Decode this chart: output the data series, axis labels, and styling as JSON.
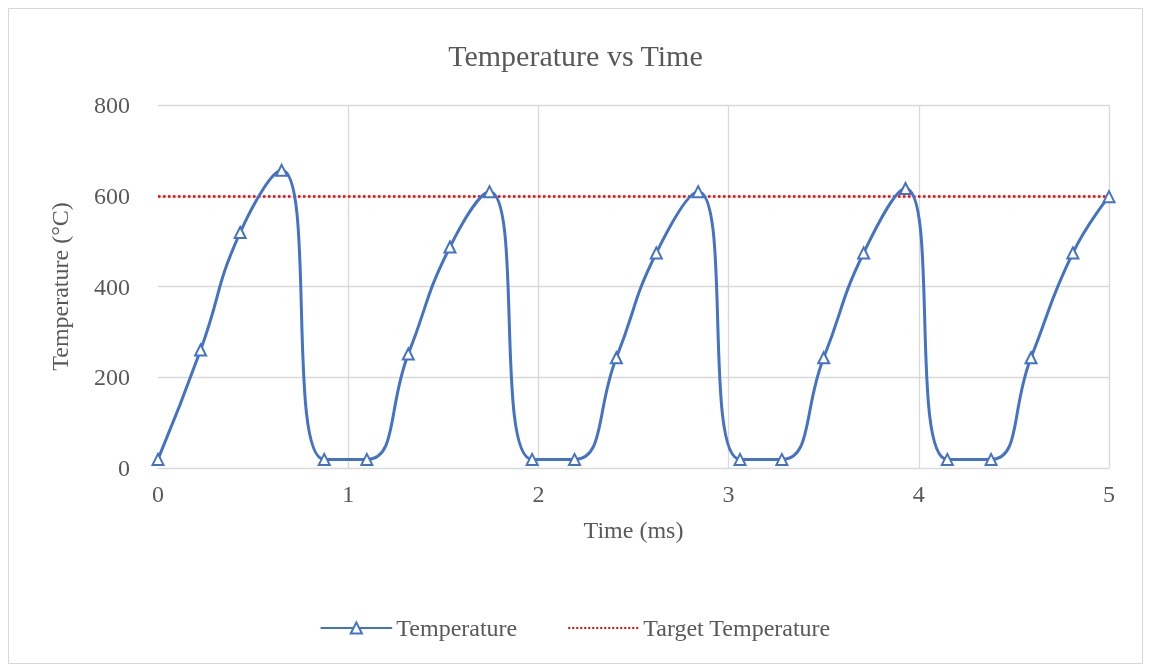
{
  "chart_data": {
    "type": "line",
    "title": "Temperature vs Time",
    "xlabel": "Time (ms)",
    "ylabel": "Temperature (°C)",
    "xlim": [
      0,
      5
    ],
    "xticks": [
      0,
      1,
      2,
      3,
      4,
      5
    ],
    "ylim": [
      0,
      800
    ],
    "yticks": [
      0,
      200,
      400,
      600,
      800
    ],
    "series": [
      {
        "name": "Temperature",
        "color": "#4472c4",
        "x": [
          0,
          0.224,
          0.432,
          0.65,
          0.874,
          1.098,
          1.316,
          1.535,
          1.743,
          1.967,
          2.19,
          2.41,
          2.62,
          2.84,
          3.06,
          3.28,
          3.5,
          3.71,
          3.93,
          4.15,
          4.38,
          4.59,
          4.81,
          5
        ],
        "values": [
          19,
          260,
          519,
          656,
          19,
          19,
          251,
          487,
          609,
          19,
          19,
          243,
          474,
          609,
          19,
          19,
          243,
          474,
          616,
          19,
          19,
          243,
          474,
          598
        ]
      }
    ],
    "ref_lines": [
      {
        "axis": "y",
        "value": 600,
        "label": "Target Temperature",
        "color": "#ff0000",
        "line_style": "dotted"
      }
    ],
    "grid": true,
    "legend": "bottom",
    "marker": "triangle",
    "line_style": "solid"
  }
}
